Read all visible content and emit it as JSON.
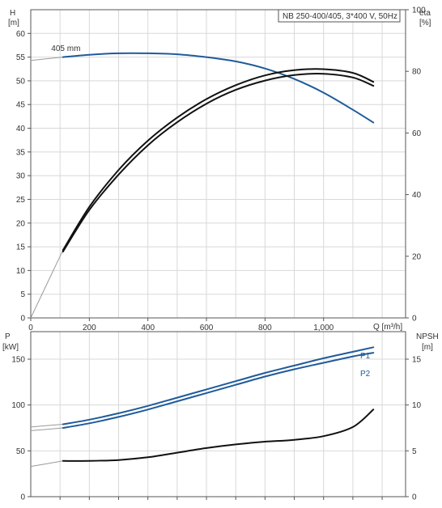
{
  "chart_data": [
    {
      "type": "line",
      "title": "NB 250-400/405, 3*400 V, 50Hz",
      "xlabel": "Q [m³/h]",
      "ylabel_left": "H",
      "ylabel_left_unit": "[m]",
      "ylabel_right": "eta",
      "ylabel_right_unit": "[%]",
      "xlim": [
        0,
        1280
      ],
      "ylim_left": [
        0,
        65
      ],
      "ylim_right": [
        0,
        100
      ],
      "x_ticks": [
        {
          "value": 0,
          "label": "0"
        },
        {
          "value": 200,
          "label": "200"
        },
        {
          "value": 400,
          "label": "400"
        },
        {
          "value": 600,
          "label": "600"
        },
        {
          "value": 800,
          "label": "800"
        },
        {
          "value": 1000,
          "label": "1,000"
        }
      ],
      "y_left_ticks": [
        "0",
        "5",
        "10",
        "15",
        "20",
        "25",
        "30",
        "35",
        "40",
        "45",
        "50",
        "55",
        "60"
      ],
      "y_right_ticks": [
        "0",
        "20",
        "40",
        "60",
        "80",
        "100"
      ],
      "grid": true,
      "annotations": [
        {
          "text": "405 mm",
          "x": 70,
          "y": 56.3
        }
      ],
      "series": [
        {
          "key": "head",
          "axis": "left",
          "color": "#1f5b9a",
          "x": [
            110,
            200,
            300,
            400,
            500,
            600,
            700,
            800,
            900,
            1000,
            1100,
            1170
          ],
          "values": [
            55,
            55.5,
            55.8,
            55.8,
            55.6,
            55,
            54.1,
            52.6,
            50.4,
            47.5,
            43.9,
            41.2
          ],
          "ext_x": [
            0,
            110
          ],
          "ext_values": [
            54.3,
            55
          ]
        },
        {
          "key": "eta-1",
          "axis": "right",
          "color": "#111111",
          "x": [
            110,
            200,
            300,
            400,
            500,
            600,
            700,
            800,
            900,
            1000,
            1100,
            1170
          ],
          "values": [
            22,
            36,
            48,
            57.5,
            65,
            71,
            75.5,
            78.7,
            80.4,
            80.7,
            79.5,
            76.6
          ],
          "ext_x": [
            0,
            110
          ],
          "ext_values": [
            0,
            22
          ]
        },
        {
          "key": "eta-2",
          "axis": "right",
          "color": "#111111",
          "x": [
            110,
            200,
            300,
            400,
            500,
            600,
            700,
            800,
            900,
            1000,
            1100,
            1170
          ],
          "values": [
            21.5,
            35,
            46.5,
            56,
            63.5,
            69.5,
            74,
            77,
            78.8,
            79.2,
            78,
            75.3
          ]
        }
      ]
    },
    {
      "type": "line",
      "xlabel": "",
      "ylabel_left": "P",
      "ylabel_left_unit": "[kW]",
      "ylabel_right": "NPSH",
      "ylabel_right_unit": "[m]",
      "xlim": [
        0,
        1280
      ],
      "ylim_left": [
        0,
        180
      ],
      "ylim_right": [
        0,
        18
      ],
      "y_left_ticks": [
        "0",
        "50",
        "100",
        "150"
      ],
      "y_right_ticks": [
        "0",
        "5",
        "10",
        "15"
      ],
      "grid": true,
      "series": [
        {
          "key": "p1",
          "axis": "left",
          "color": "#1f5b9a",
          "name": "P1",
          "x": [
            110,
            200,
            300,
            400,
            500,
            600,
            700,
            800,
            900,
            1000,
            1100,
            1170
          ],
          "values": [
            79,
            84,
            91,
            99,
            108,
            117,
            126,
            135,
            143,
            151,
            158,
            163
          ],
          "ext_x": [
            0,
            110
          ],
          "ext_values": [
            76,
            79
          ]
        },
        {
          "key": "p2",
          "axis": "left",
          "color": "#1f5b9a",
          "name": "P2",
          "x": [
            110,
            200,
            300,
            400,
            500,
            600,
            700,
            800,
            900,
            1000,
            1100,
            1170
          ],
          "values": [
            75,
            80,
            87,
            95,
            104,
            113,
            122,
            131,
            139,
            146,
            153,
            157
          ],
          "ext_x": [
            0,
            110
          ],
          "ext_values": [
            72,
            75
          ]
        },
        {
          "key": "npsh",
          "axis": "right",
          "color": "#111111",
          "x": [
            110,
            200,
            300,
            400,
            500,
            600,
            700,
            800,
            900,
            1000,
            1100,
            1170
          ],
          "values": [
            3.9,
            3.9,
            4.0,
            4.3,
            4.8,
            5.3,
            5.7,
            6.0,
            6.2,
            6.6,
            7.6,
            9.5
          ],
          "ext_x": [
            0,
            110
          ],
          "ext_values": [
            3.3,
            3.9
          ]
        }
      ]
    }
  ]
}
